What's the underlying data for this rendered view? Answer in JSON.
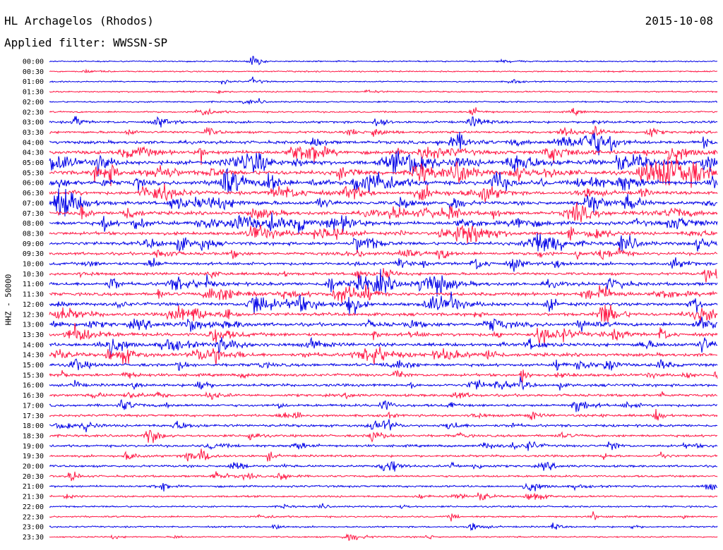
{
  "header": {
    "station": "HL Archagelos (Rhodos)",
    "date": "2015-10-08",
    "filter": "Applied filter: WWSSN-SP"
  },
  "chart_data": {
    "type": "line",
    "title": "HL Archagelos (Rhodos)",
    "ylabel": "HHZ - 50000",
    "rows": [
      "00:00",
      "00:30",
      "01:00",
      "01:30",
      "02:00",
      "02:30",
      "03:00",
      "03:30",
      "04:00",
      "04:30",
      "05:00",
      "05:30",
      "06:00",
      "06:30",
      "07:00",
      "07:30",
      "08:00",
      "08:30",
      "09:00",
      "09:30",
      "10:00",
      "10:30",
      "11:00",
      "11:30",
      "12:00",
      "12:30",
      "13:00",
      "13:30",
      "14:00",
      "14:30",
      "15:00",
      "15:30",
      "16:00",
      "16:30",
      "17:00",
      "17:30",
      "18:00",
      "18:30",
      "19:00",
      "19:30",
      "20:00",
      "20:30",
      "21:00",
      "21:30",
      "22:00",
      "22:30",
      "23:00",
      "23:30"
    ],
    "activity": [
      0.05,
      0.06,
      0.04,
      0.08,
      0.1,
      0.12,
      0.3,
      0.35,
      0.55,
      0.7,
      0.8,
      0.85,
      0.85,
      0.6,
      0.65,
      0.6,
      0.7,
      0.55,
      0.6,
      0.5,
      0.5,
      0.45,
      0.6,
      0.55,
      0.6,
      0.55,
      0.65,
      0.6,
      0.6,
      0.6,
      0.5,
      0.45,
      0.45,
      0.4,
      0.4,
      0.35,
      0.4,
      0.35,
      0.35,
      0.3,
      0.3,
      0.25,
      0.25,
      0.2,
      0.15,
      0.15,
      0.12,
      0.1
    ],
    "series_colors": [
      "#0000e6",
      "#ff1744"
    ],
    "grid": false
  }
}
